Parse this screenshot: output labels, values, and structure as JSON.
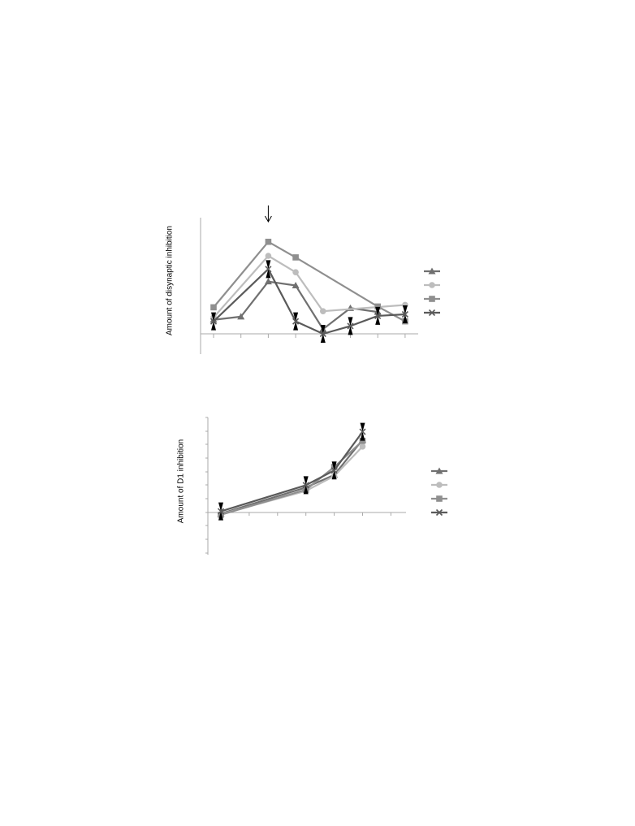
{
  "chart_data": [
    {
      "type": "line",
      "ylabel": "Amount of disynaptic inhibition",
      "xlabel": "",
      "title": "",
      "x": [
        1,
        2,
        3,
        4,
        5,
        6,
        7,
        8
      ],
      "annotation": "↓",
      "legend_placement": "right",
      "series": [
        {
          "marker": "triangle",
          "color": "#707070",
          "values": [
            0.18,
            0.22,
            0.67,
            0.62,
            0.06,
            0.33,
            0.28,
            null
          ]
        },
        {
          "marker": "circle",
          "color": "#bdbdbd",
          "values": [
            0.21,
            null,
            1.0,
            0.79,
            0.29,
            null,
            null,
            0.37
          ]
        },
        {
          "marker": "square",
          "color": "#8f8f8f",
          "values": [
            0.34,
            null,
            1.18,
            0.98,
            null,
            null,
            0.35,
            0.16
          ]
        },
        {
          "marker": "x",
          "color": "#5a5a5a",
          "values": [
            0.16,
            null,
            0.83,
            0.16,
            0.0,
            0.1,
            0.23,
            0.25
          ]
        }
      ]
    },
    {
      "type": "line",
      "ylabel": "Amount of D1 inhibition",
      "xlabel": "",
      "title": "",
      "x": [
        0,
        3,
        4,
        5
      ],
      "legend_placement": "right",
      "series": [
        {
          "marker": "triangle",
          "color": "#707070",
          "values": [
            -0.05,
            1.1,
            1.65,
            3.2
          ]
        },
        {
          "marker": "circle",
          "color": "#bdbdbd",
          "values": [
            -0.08,
            0.95,
            1.6,
            2.9
          ]
        },
        {
          "marker": "square",
          "color": "#8f8f8f",
          "values": [
            -0.1,
            1.0,
            2.0,
            3.15
          ]
        },
        {
          "marker": "x",
          "color": "#5a5a5a",
          "values": [
            0.05,
            1.2,
            1.85,
            3.55
          ]
        }
      ]
    }
  ]
}
